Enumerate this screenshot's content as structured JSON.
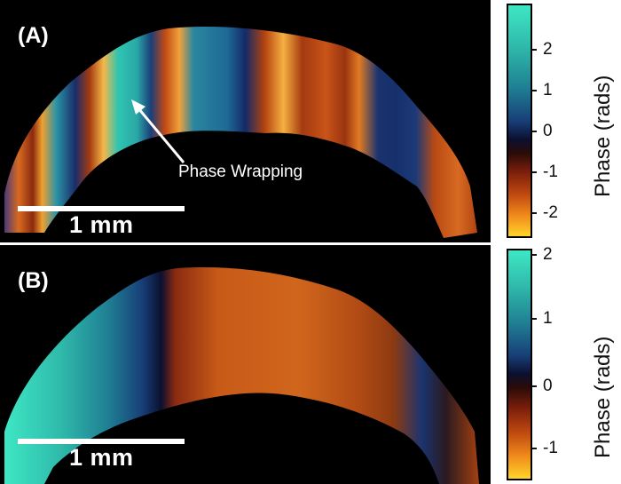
{
  "panel_a": {
    "letter": "(A)",
    "annotation": "Phase Wrapping",
    "scalebar": "1 mm",
    "colorbar": {
      "title": "Phase (rads)",
      "ticks": [
        "2",
        "1",
        "0",
        "-1",
        "-2"
      ],
      "colors": [
        "#3ee7c4",
        "#1f7e93",
        "#0b1030",
        "#7a1e0b",
        "#ffd42a"
      ]
    }
  },
  "panel_b": {
    "letter": "(B)",
    "scalebar": "1 mm",
    "colorbar": {
      "title": "Phase (rads)",
      "ticks": [
        "2",
        "1",
        "0",
        "-1"
      ],
      "colors": [
        "#3ee7c4",
        "#1f7e93",
        "#0b1030",
        "#7a1e0b",
        "#ffd42a"
      ]
    }
  }
}
